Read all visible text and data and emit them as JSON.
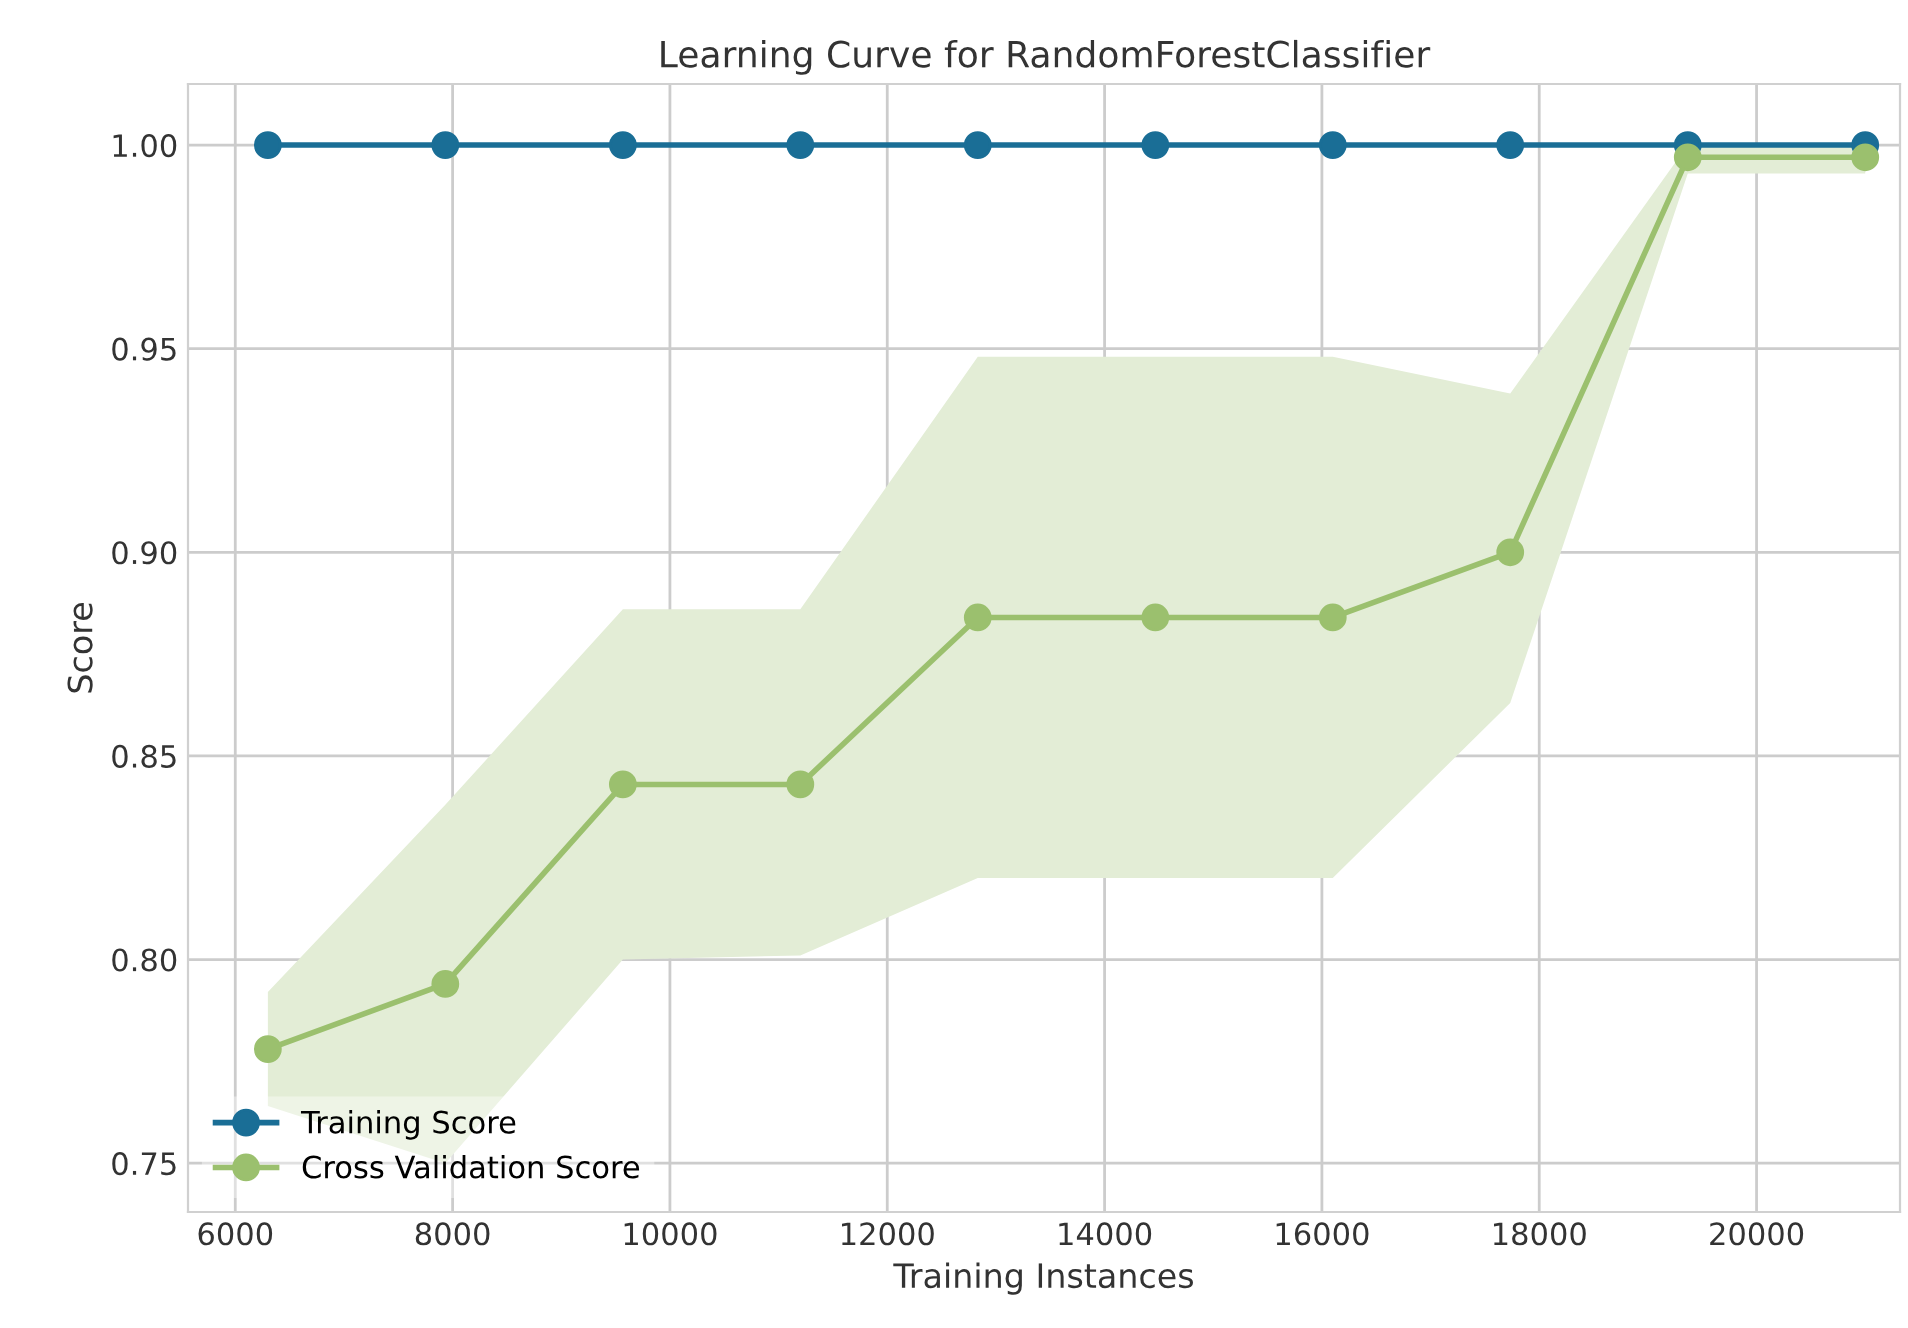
{
  "chart_data": {
    "type": "line",
    "title": "Learning Curve for RandomForestClassifier",
    "xlabel": "Training Instances",
    "ylabel": "Score",
    "x": [
      6300,
      7933,
      9567,
      11200,
      12833,
      14467,
      16100,
      17733,
      19367,
      21000
    ],
    "series": [
      {
        "name": "Training Score",
        "color": "#1a6e96",
        "values": [
          1.0,
          1.0,
          1.0,
          1.0,
          1.0,
          1.0,
          1.0,
          1.0,
          1.0,
          1.0
        ]
      },
      {
        "name": "Cross Validation Score",
        "color": "#9bc06e",
        "values": [
          0.778,
          0.794,
          0.843,
          0.843,
          0.884,
          0.884,
          0.884,
          0.9,
          0.997,
          0.997
        ],
        "lower": [
          0.764,
          0.75,
          0.8,
          0.801,
          0.82,
          0.82,
          0.82,
          0.863,
          0.993,
          0.993
        ],
        "upper": [
          0.792,
          0.838,
          0.886,
          0.886,
          0.948,
          0.948,
          0.948,
          0.939,
          1.0,
          1.0
        ]
      }
    ],
    "xlim": [
      5565,
      21320
    ],
    "ylim": [
      0.738,
      1.015
    ],
    "xticks": [
      6000,
      8000,
      10000,
      12000,
      14000,
      16000,
      18000,
      20000
    ],
    "yticks": [
      {
        "value": 0.75,
        "label": "0.75"
      },
      {
        "value": 0.8,
        "label": "0.80"
      },
      {
        "value": 0.85,
        "label": "0.85"
      },
      {
        "value": 0.9,
        "label": "0.90"
      },
      {
        "value": 0.95,
        "label": "0.95"
      },
      {
        "value": 1.0,
        "label": "1.00"
      }
    ],
    "grid": true,
    "legend": "bottom left",
    "marker": "circle",
    "line_style": "solid"
  }
}
